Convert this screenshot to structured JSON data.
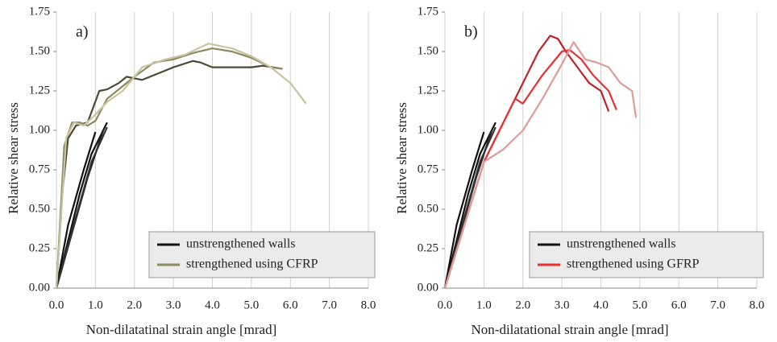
{
  "chart_data": [
    {
      "type": "line",
      "annotation": "a)",
      "x_label": "Non-dilatatinal strain angle [mrad]",
      "y_label": "Relative shear stress",
      "xlim": [
        0,
        8
      ],
      "ylim": [
        0,
        1.75
      ],
      "xticks": [
        {
          "value": 0,
          "label": "0.0"
        },
        {
          "value": 1,
          "label": "1.0"
        },
        {
          "value": 2,
          "label": "2.0"
        },
        {
          "value": 3,
          "label": "3.0"
        },
        {
          "value": 4,
          "label": "4.0"
        },
        {
          "value": 5,
          "label": "5.0"
        },
        {
          "value": 6,
          "label": "6.0"
        },
        {
          "value": 7,
          "label": "7.0"
        },
        {
          "value": 8,
          "label": "8.0"
        }
      ],
      "yticks": [
        {
          "value": 0,
          "label": "0.00"
        },
        {
          "value": 0.25,
          "label": "0.25"
        },
        {
          "value": 0.5,
          "label": "0.50"
        },
        {
          "value": 0.75,
          "label": "0.75"
        },
        {
          "value": 1,
          "label": "1.00"
        },
        {
          "value": 1.25,
          "label": "1.25"
        },
        {
          "value": 1.5,
          "label": "1.50"
        },
        {
          "value": 1.75,
          "label": "1.75"
        }
      ],
      "grid": true,
      "legend": "lower right",
      "series": [
        {
          "name": "unstrengthened walls",
          "color": "#111111",
          "lines": [
            {
              "color": "#111111",
              "x": [
                0,
                0.3,
                0.6,
                0.9,
                1.3
              ],
              "values": [
                0,
                0.3,
                0.6,
                0.85,
                1.05
              ]
            },
            {
              "color": "#222222",
              "x": [
                0,
                0.4,
                0.8,
                1.2
              ],
              "values": [
                0,
                0.35,
                0.7,
                1.0
              ]
            },
            {
              "color": "#111111",
              "x": [
                0,
                0.3,
                0.7,
                1.0
              ],
              "values": [
                0,
                0.4,
                0.75,
                0.99
              ]
            },
            {
              "color": "#333333",
              "x": [
                0,
                0.5,
                0.9,
                1.3
              ],
              "values": [
                0,
                0.45,
                0.8,
                1.02
              ]
            }
          ]
        },
        {
          "name": "strengthened using CFRP",
          "color": "#8b8a60",
          "lines": [
            {
              "color": "#4a4a35",
              "x": [
                0,
                0.15,
                0.3,
                0.5,
                0.8,
                1.1,
                1.3,
                1.6,
                1.8,
                2.2,
                2.7,
                3.0,
                3.5,
                3.7,
                4.0,
                4.5,
                5.0,
                5.3,
                5.8
              ],
              "values": [
                0,
                0.6,
                0.95,
                1.03,
                1.05,
                1.25,
                1.26,
                1.3,
                1.34,
                1.32,
                1.37,
                1.4,
                1.44,
                1.43,
                1.4,
                1.4,
                1.4,
                1.41,
                1.39
              ]
            },
            {
              "color": "#8b8a60",
              "x": [
                0,
                0.2,
                0.4,
                0.6,
                0.8,
                1.0,
                1.3,
                1.6,
                2.0,
                2.5,
                3.0,
                3.5,
                4.0,
                4.5,
                5.0,
                5.5,
                5.8
              ],
              "values": [
                0,
                0.9,
                1.05,
                1.05,
                1.03,
                1.06,
                1.2,
                1.26,
                1.34,
                1.43,
                1.45,
                1.49,
                1.52,
                1.5,
                1.46,
                1.4,
                1.39
              ]
            },
            {
              "color": "#c8c4a0",
              "x": [
                0,
                0.25,
                0.45,
                0.7,
                1.0,
                1.3,
                1.7,
                2.2,
                2.8,
                3.3,
                3.9,
                4.5,
                5.0,
                5.5,
                6.0,
                6.4
              ],
              "values": [
                0,
                0.95,
                1.05,
                1.03,
                1.1,
                1.18,
                1.25,
                1.4,
                1.45,
                1.48,
                1.55,
                1.52,
                1.47,
                1.4,
                1.3,
                1.17
              ]
            }
          ]
        }
      ]
    },
    {
      "type": "line",
      "annotation": "b)",
      "x_label": "Non-dilatational strain angle [mrad]",
      "y_label": "Relative shear stress",
      "xlim": [
        0,
        8
      ],
      "ylim": [
        0,
        1.75
      ],
      "xticks": [
        {
          "value": 0,
          "label": "0.0"
        },
        {
          "value": 1,
          "label": "1.0"
        },
        {
          "value": 2,
          "label": "2.0"
        },
        {
          "value": 3,
          "label": "3.0"
        },
        {
          "value": 4,
          "label": "4.0"
        },
        {
          "value": 5,
          "label": "5.0"
        },
        {
          "value": 6,
          "label": "6.0"
        },
        {
          "value": 7,
          "label": "7.0"
        },
        {
          "value": 8,
          "label": "8.0"
        }
      ],
      "yticks": [
        {
          "value": 0,
          "label": "0.00"
        },
        {
          "value": 0.25,
          "label": "0.25"
        },
        {
          "value": 0.5,
          "label": "0.50"
        },
        {
          "value": 0.75,
          "label": "0.75"
        },
        {
          "value": 1,
          "label": "1.00"
        },
        {
          "value": 1.25,
          "label": "1.25"
        },
        {
          "value": 1.5,
          "label": "1.50"
        },
        {
          "value": 1.75,
          "label": "1.75"
        }
      ],
      "grid": true,
      "legend": "lower right",
      "series": [
        {
          "name": "unstrengthened walls",
          "color": "#111111",
          "lines": [
            {
              "color": "#111111",
              "x": [
                0,
                0.3,
                0.6,
                0.9,
                1.3
              ],
              "values": [
                0,
                0.3,
                0.6,
                0.85,
                1.05
              ]
            },
            {
              "color": "#222222",
              "x": [
                0,
                0.4,
                0.8,
                1.2
              ],
              "values": [
                0,
                0.35,
                0.7,
                1.0
              ]
            },
            {
              "color": "#111111",
              "x": [
                0,
                0.3,
                0.7,
                1.0
              ],
              "values": [
                0,
                0.4,
                0.75,
                0.99
              ]
            },
            {
              "color": "#333333",
              "x": [
                0,
                0.5,
                0.9,
                1.3
              ],
              "values": [
                0,
                0.45,
                0.8,
                1.02
              ]
            }
          ]
        },
        {
          "name": "strengthened using GFRP",
          "color": "#e83030",
          "lines": [
            {
              "color": "#c0202a",
              "x": [
                0,
                0.5,
                1.0,
                1.5,
                2.0,
                2.4,
                2.7,
                2.9,
                3.1,
                3.4,
                3.7,
                4.0,
                4.2
              ],
              "values": [
                0,
                0.4,
                0.8,
                1.05,
                1.3,
                1.5,
                1.6,
                1.58,
                1.5,
                1.4,
                1.3,
                1.25,
                1.12
              ]
            },
            {
              "color": "#e83030",
              "x": [
                0,
                0.5,
                1.0,
                1.5,
                1.8,
                2.0,
                2.5,
                3.0,
                3.2,
                3.5,
                3.8,
                4.2,
                4.4
              ],
              "values": [
                0,
                0.4,
                0.8,
                1.05,
                1.2,
                1.17,
                1.35,
                1.5,
                1.51,
                1.45,
                1.35,
                1.25,
                1.13
              ]
            },
            {
              "color": "#e09a9a",
              "x": [
                0,
                0.5,
                1.0,
                1.5,
                2.0,
                2.5,
                3.0,
                3.3,
                3.6,
                3.9,
                4.2,
                4.5,
                4.8,
                4.9
              ],
              "values": [
                0,
                0.4,
                0.8,
                0.88,
                1.0,
                1.2,
                1.42,
                1.56,
                1.45,
                1.43,
                1.4,
                1.3,
                1.25,
                1.08
              ]
            }
          ]
        }
      ]
    }
  ]
}
